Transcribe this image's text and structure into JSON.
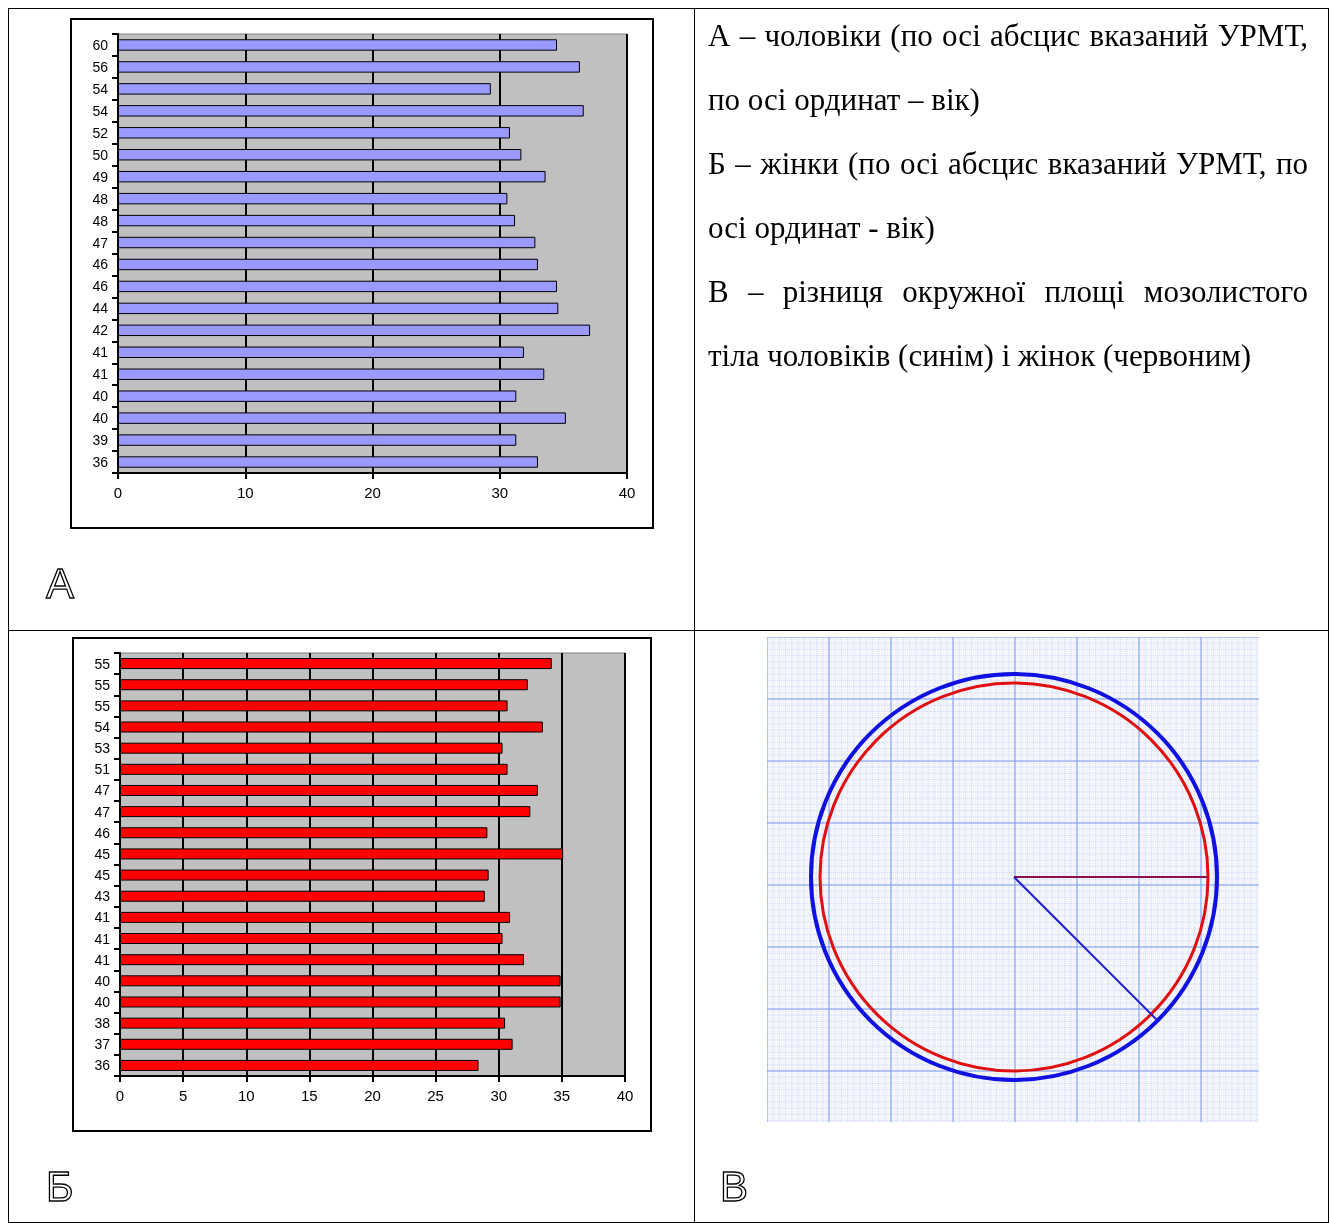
{
  "chart_data": [
    {
      "type": "bar",
      "orientation": "horizontal",
      "categories": [
        "60",
        "56",
        "54",
        "54",
        "52",
        "50",
        "49",
        "48",
        "48",
        "47",
        "46",
        "46",
        "44",
        "42",
        "41",
        "41",
        "40",
        "40",
        "39",
        "36"
      ],
      "values": [
        34.5,
        36.3,
        29.3,
        36.6,
        30.8,
        31.7,
        33.6,
        30.6,
        31.2,
        32.8,
        33.0,
        34.5,
        34.6,
        37.1,
        31.9,
        33.5,
        31.3,
        35.2,
        31.3,
        33.0
      ],
      "color": "#9999ff",
      "xlim": [
        0,
        40
      ],
      "xticks": [
        0,
        10,
        20,
        30,
        40
      ],
      "grid": "x",
      "annotations": [
        "А"
      ]
    },
    {
      "type": "other",
      "annotations": [
        "А – чоловіки (по осі абсцис вказаний УРМТ, по осі ординат – вік)",
        "Б – жінки (по осі абсцис вказаний УРМТ, по осі ординат - вік)",
        "В – різниця окружної площі мозолистого тіла чоловіків (синім) і жінок (червоним)"
      ]
    },
    {
      "type": "bar",
      "orientation": "horizontal",
      "categories": [
        "55",
        "55",
        "55",
        "54",
        "53",
        "51",
        "47",
        "47",
        "46",
        "45",
        "45",
        "43",
        "41",
        "41",
        "41",
        "40",
        "40",
        "38",
        "37",
        "36"
      ],
      "values": [
        34.2,
        32.3,
        30.7,
        33.5,
        30.3,
        30.7,
        33.1,
        32.5,
        29.1,
        35.1,
        29.2,
        28.9,
        30.9,
        30.3,
        32.0,
        34.9,
        34.9,
        30.5,
        31.1,
        28.4
      ],
      "color": "#ff0000",
      "xlim": [
        0,
        40
      ],
      "xticks": [
        0,
        5,
        10,
        15,
        20,
        25,
        30,
        35,
        40
      ],
      "grid": "x",
      "annotations": [
        "Б"
      ]
    },
    {
      "type": "other",
      "annotations": [
        "В"
      ]
    }
  ]
}
